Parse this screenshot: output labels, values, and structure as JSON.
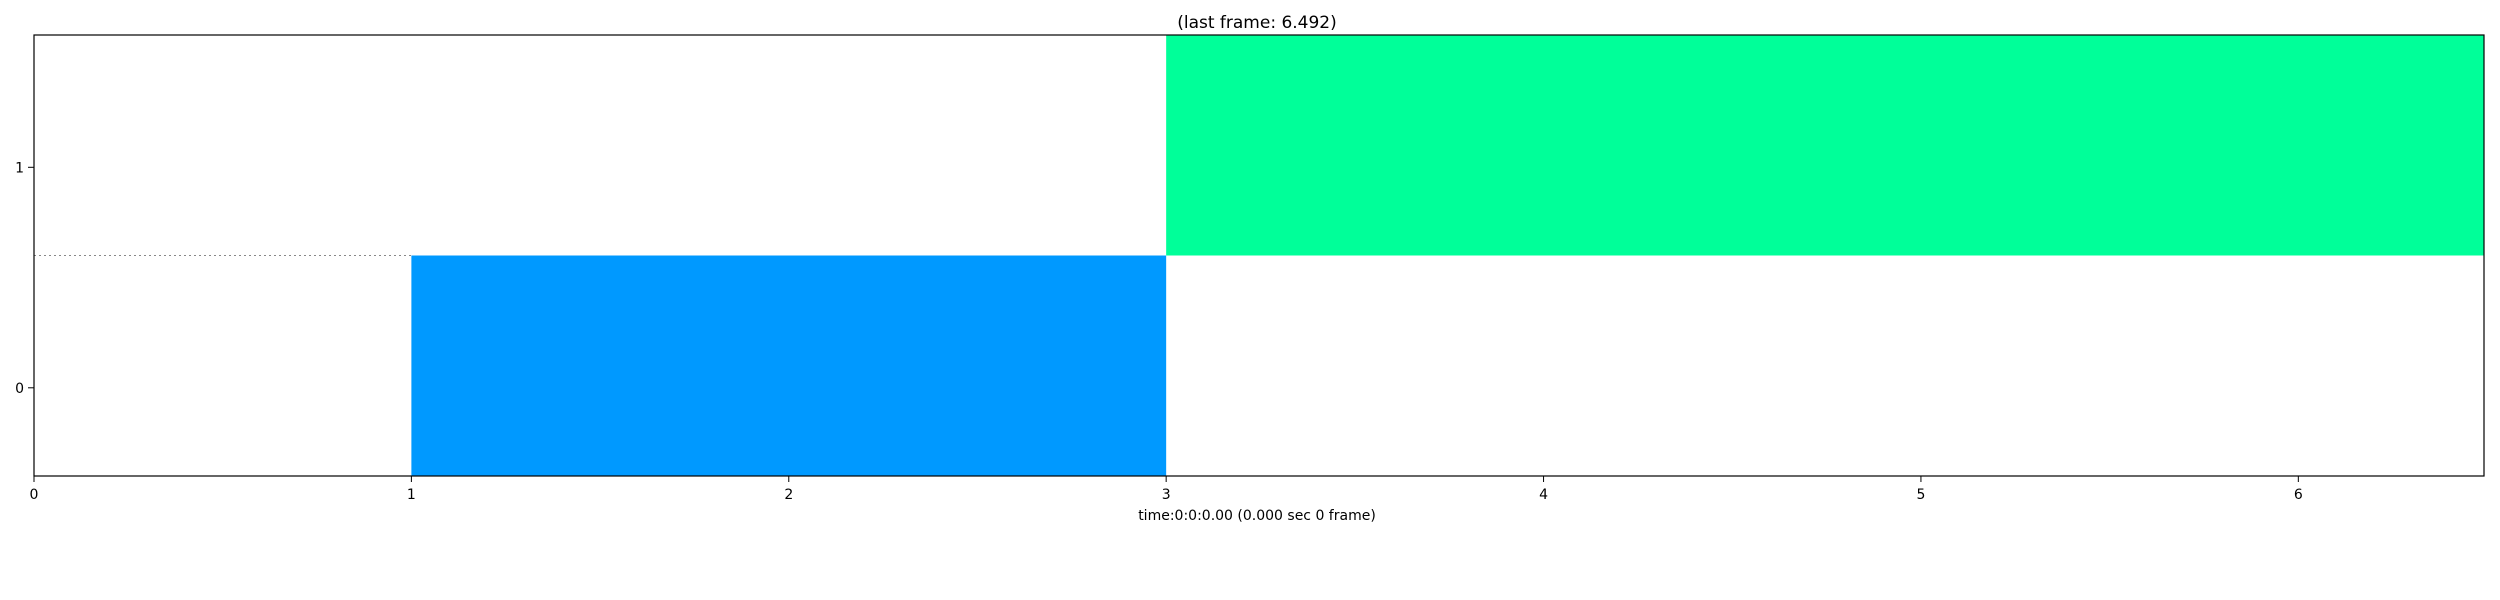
{
  "chart_data": {
    "type": "timeline",
    "title": "(last frame: 6.492)",
    "xlabel": "time:0:0:0.00 (0.000 sec 0 frame)",
    "ylabel": "",
    "xlim": [
      0,
      6.492
    ],
    "ylim": [
      -0.4,
      1.6
    ],
    "xticks": [
      0,
      1,
      2,
      3,
      4,
      5,
      6
    ],
    "yticks": [
      0,
      1
    ],
    "separator_y": 0.6,
    "segments": [
      {
        "row": 0,
        "start": 1,
        "end": 3,
        "color": "#0099ff"
      },
      {
        "row": 1,
        "start": 3,
        "end": 6.492,
        "color": "#00ff99"
      }
    ],
    "grid": false,
    "legend": "none"
  }
}
